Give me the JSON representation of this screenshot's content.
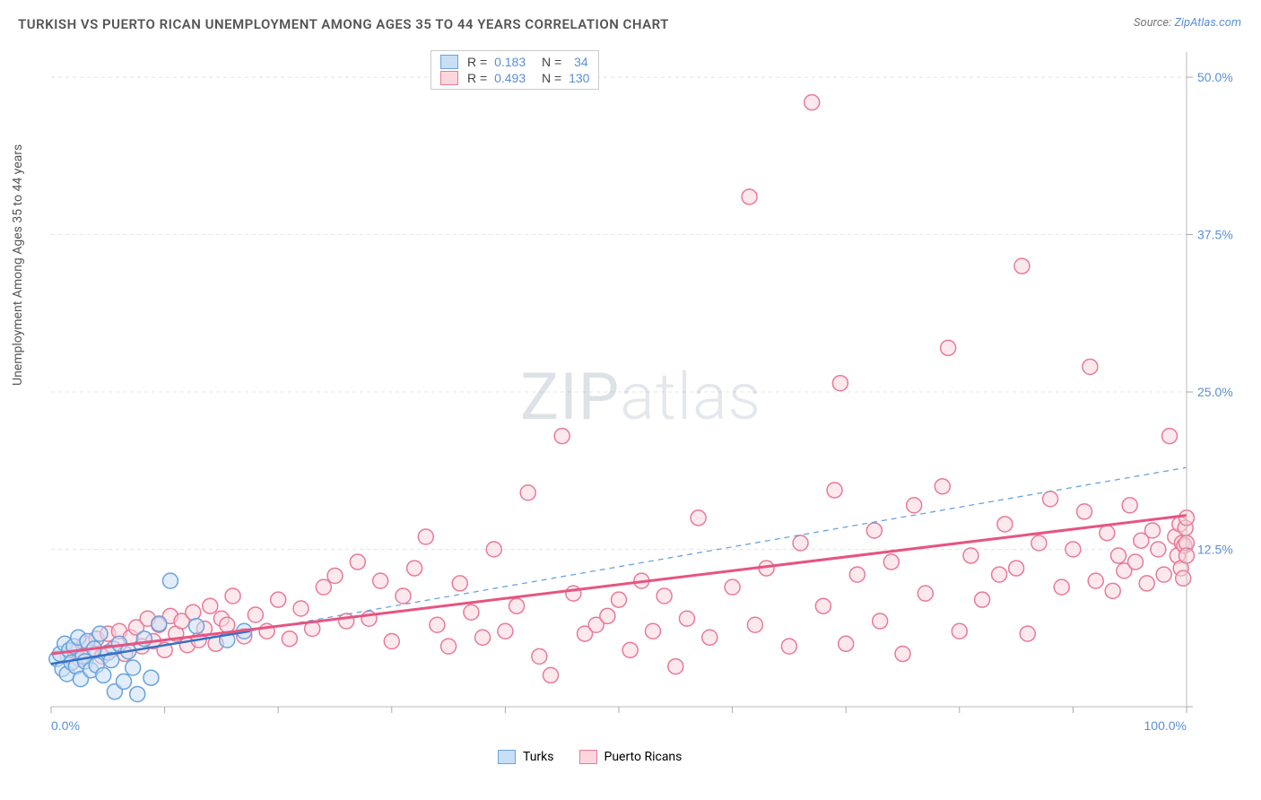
{
  "title": "TURKISH VS PUERTO RICAN UNEMPLOYMENT AMONG AGES 35 TO 44 YEARS CORRELATION CHART",
  "source_label": "Source: ",
  "source_name": "ZipAtlas.com",
  "ylabel": "Unemployment Among Ages 35 to 44 years",
  "watermark_bold": "ZIP",
  "watermark_light": "atlas",
  "chart": {
    "type": "scatter",
    "background_color": "#ffffff",
    "grid_color": "#e5e5e5",
    "axis_color": "#bbbbbb",
    "tick_color": "#aaaaaa",
    "label_color": "#5a8fd6",
    "xlim": [
      0,
      100
    ],
    "ylim": [
      0,
      52
    ],
    "xtick_positions": [
      0,
      10,
      20,
      30,
      40,
      50,
      60,
      70,
      80,
      90,
      100
    ],
    "xtick_labels": {
      "0": "0.0%",
      "100": "100.0%"
    },
    "ytick_positions": [
      0,
      12.5,
      25.0,
      37.5,
      50.0
    ],
    "ytick_labels": {
      "12.5": "12.5%",
      "25.0": "25.0%",
      "37.5": "37.5%",
      "50.0": "50.0%"
    },
    "marker_radius": 8.5,
    "marker_stroke_width": 1.5,
    "series": [
      {
        "name": "Turks",
        "fill": "#c9dff5",
        "stroke": "#6aa3de",
        "fill_opacity": 0.55,
        "points": [
          [
            0.5,
            3.8
          ],
          [
            0.8,
            4.2
          ],
          [
            1.0,
            3.0
          ],
          [
            1.2,
            5.0
          ],
          [
            1.4,
            2.6
          ],
          [
            1.6,
            4.5
          ],
          [
            1.8,
            3.5
          ],
          [
            2.0,
            4.8
          ],
          [
            2.2,
            3.2
          ],
          [
            2.4,
            5.5
          ],
          [
            2.6,
            2.2
          ],
          [
            2.8,
            4.0
          ],
          [
            3.0,
            3.6
          ],
          [
            3.2,
            5.2
          ],
          [
            3.5,
            2.9
          ],
          [
            3.8,
            4.6
          ],
          [
            4.0,
            3.3
          ],
          [
            4.3,
            5.8
          ],
          [
            4.6,
            2.5
          ],
          [
            5.0,
            4.3
          ],
          [
            5.3,
            3.7
          ],
          [
            5.6,
            1.2
          ],
          [
            6.0,
            5.0
          ],
          [
            6.4,
            2.0
          ],
          [
            6.8,
            4.4
          ],
          [
            7.2,
            3.1
          ],
          [
            7.6,
            1.0
          ],
          [
            8.2,
            5.4
          ],
          [
            8.8,
            2.3
          ],
          [
            9.5,
            6.6
          ],
          [
            10.5,
            10.0
          ],
          [
            12.8,
            6.4
          ],
          [
            15.5,
            5.3
          ],
          [
            17.0,
            6.0
          ]
        ],
        "trend": {
          "x1": 0,
          "y1": 3.4,
          "x2": 17.5,
          "y2": 6.0,
          "stroke": "#3570c5",
          "width": 2.5,
          "dash": "none"
        },
        "extrap": {
          "x1": 17.5,
          "y1": 6.0,
          "x2": 100,
          "y2": 19.0,
          "stroke": "#6aa3de",
          "width": 1.3,
          "dash": "6 5"
        },
        "R_label": "R =",
        "R_value": "0.183",
        "N_label": "N =",
        "N_value": "34"
      },
      {
        "name": "Puerto Ricans",
        "fill": "#fbd6de",
        "stroke": "#e87b97",
        "fill_opacity": 0.55,
        "points": [
          [
            1.5,
            4.0
          ],
          [
            2.0,
            4.5
          ],
          [
            2.5,
            3.8
          ],
          [
            3.0,
            5.0
          ],
          [
            3.5,
            4.3
          ],
          [
            4.0,
            5.4
          ],
          [
            4.5,
            4.0
          ],
          [
            5.0,
            5.8
          ],
          [
            5.5,
            4.6
          ],
          [
            6.0,
            6.0
          ],
          [
            6.5,
            4.2
          ],
          [
            7.0,
            5.5
          ],
          [
            7.5,
            6.3
          ],
          [
            8.0,
            4.8
          ],
          [
            8.5,
            7.0
          ],
          [
            9.0,
            5.2
          ],
          [
            9.5,
            6.5
          ],
          [
            10.0,
            4.5
          ],
          [
            10.5,
            7.2
          ],
          [
            11.0,
            5.8
          ],
          [
            11.5,
            6.8
          ],
          [
            12.0,
            4.9
          ],
          [
            12.5,
            7.5
          ],
          [
            13.0,
            5.3
          ],
          [
            13.5,
            6.2
          ],
          [
            14.0,
            8.0
          ],
          [
            14.5,
            5.0
          ],
          [
            15.0,
            7.0
          ],
          [
            15.5,
            6.5
          ],
          [
            16.0,
            8.8
          ],
          [
            17.0,
            5.6
          ],
          [
            18.0,
            7.3
          ],
          [
            19.0,
            6.0
          ],
          [
            20.0,
            8.5
          ],
          [
            21.0,
            5.4
          ],
          [
            22.0,
            7.8
          ],
          [
            23.0,
            6.2
          ],
          [
            24.0,
            9.5
          ],
          [
            25.0,
            10.4
          ],
          [
            26.0,
            6.8
          ],
          [
            27.0,
            11.5
          ],
          [
            28.0,
            7.0
          ],
          [
            29.0,
            10.0
          ],
          [
            30.0,
            5.2
          ],
          [
            31.0,
            8.8
          ],
          [
            32.0,
            11.0
          ],
          [
            33.0,
            13.5
          ],
          [
            34.0,
            6.5
          ],
          [
            35.0,
            4.8
          ],
          [
            36.0,
            9.8
          ],
          [
            37.0,
            7.5
          ],
          [
            38.0,
            5.5
          ],
          [
            39.0,
            12.5
          ],
          [
            40.0,
            6.0
          ],
          [
            41.0,
            8.0
          ],
          [
            42.0,
            17.0
          ],
          [
            43.0,
            4.0
          ],
          [
            44.0,
            2.5
          ],
          [
            45.0,
            21.5
          ],
          [
            46.0,
            9.0
          ],
          [
            47.0,
            5.8
          ],
          [
            48.0,
            6.5
          ],
          [
            49.0,
            7.2
          ],
          [
            50.0,
            8.5
          ],
          [
            51.0,
            4.5
          ],
          [
            52.0,
            10.0
          ],
          [
            53.0,
            6.0
          ],
          [
            54.0,
            8.8
          ],
          [
            55.0,
            3.2
          ],
          [
            56.0,
            7.0
          ],
          [
            57.0,
            15.0
          ],
          [
            58.0,
            5.5
          ],
          [
            60.0,
            9.5
          ],
          [
            61.5,
            40.5
          ],
          [
            62.0,
            6.5
          ],
          [
            63.0,
            11.0
          ],
          [
            65.0,
            4.8
          ],
          [
            66.0,
            13.0
          ],
          [
            67.0,
            48.0
          ],
          [
            68.0,
            8.0
          ],
          [
            69.0,
            17.2
          ],
          [
            69.5,
            25.7
          ],
          [
            70.0,
            5.0
          ],
          [
            71.0,
            10.5
          ],
          [
            72.5,
            14.0
          ],
          [
            73.0,
            6.8
          ],
          [
            74.0,
            11.5
          ],
          [
            75.0,
            4.2
          ],
          [
            76.0,
            16.0
          ],
          [
            77.0,
            9.0
          ],
          [
            78.5,
            17.5
          ],
          [
            79.0,
            28.5
          ],
          [
            80.0,
            6.0
          ],
          [
            81.0,
            12.0
          ],
          [
            82.0,
            8.5
          ],
          [
            83.5,
            10.5
          ],
          [
            84.0,
            14.5
          ],
          [
            85.0,
            11.0
          ],
          [
            85.5,
            35.0
          ],
          [
            86.0,
            5.8
          ],
          [
            87.0,
            13.0
          ],
          [
            88.0,
            16.5
          ],
          [
            89.0,
            9.5
          ],
          [
            90.0,
            12.5
          ],
          [
            91.0,
            15.5
          ],
          [
            91.5,
            27.0
          ],
          [
            92.0,
            10.0
          ],
          [
            93.0,
            13.8
          ],
          [
            93.5,
            9.2
          ],
          [
            94.0,
            12.0
          ],
          [
            94.5,
            10.8
          ],
          [
            95.0,
            16.0
          ],
          [
            95.5,
            11.5
          ],
          [
            96.0,
            13.2
          ],
          [
            96.5,
            9.8
          ],
          [
            97.0,
            14.0
          ],
          [
            97.5,
            12.5
          ],
          [
            98.0,
            10.5
          ],
          [
            98.5,
            21.5
          ],
          [
            99.0,
            13.5
          ],
          [
            99.2,
            12.0
          ],
          [
            99.4,
            14.5
          ],
          [
            99.5,
            11.0
          ],
          [
            99.6,
            13.0
          ],
          [
            99.7,
            10.2
          ],
          [
            99.8,
            12.8
          ],
          [
            99.9,
            14.2
          ],
          [
            100.0,
            13.0
          ],
          [
            100.0,
            12.0
          ],
          [
            100.0,
            15.0
          ]
        ],
        "trend": {
          "x1": 0,
          "y1": 4.2,
          "x2": 100,
          "y2": 15.2,
          "stroke": "#e75480",
          "width": 3.0,
          "dash": "none"
        },
        "R_label": "R =",
        "R_value": "0.493",
        "N_label": "N =",
        "N_value": "130"
      }
    ],
    "bottom_legend": [
      {
        "swatch_fill": "#c9dff5",
        "swatch_stroke": "#6aa3de",
        "label": "Turks"
      },
      {
        "swatch_fill": "#fbd6de",
        "swatch_stroke": "#e87b97",
        "label": "Puerto Ricans"
      }
    ]
  }
}
